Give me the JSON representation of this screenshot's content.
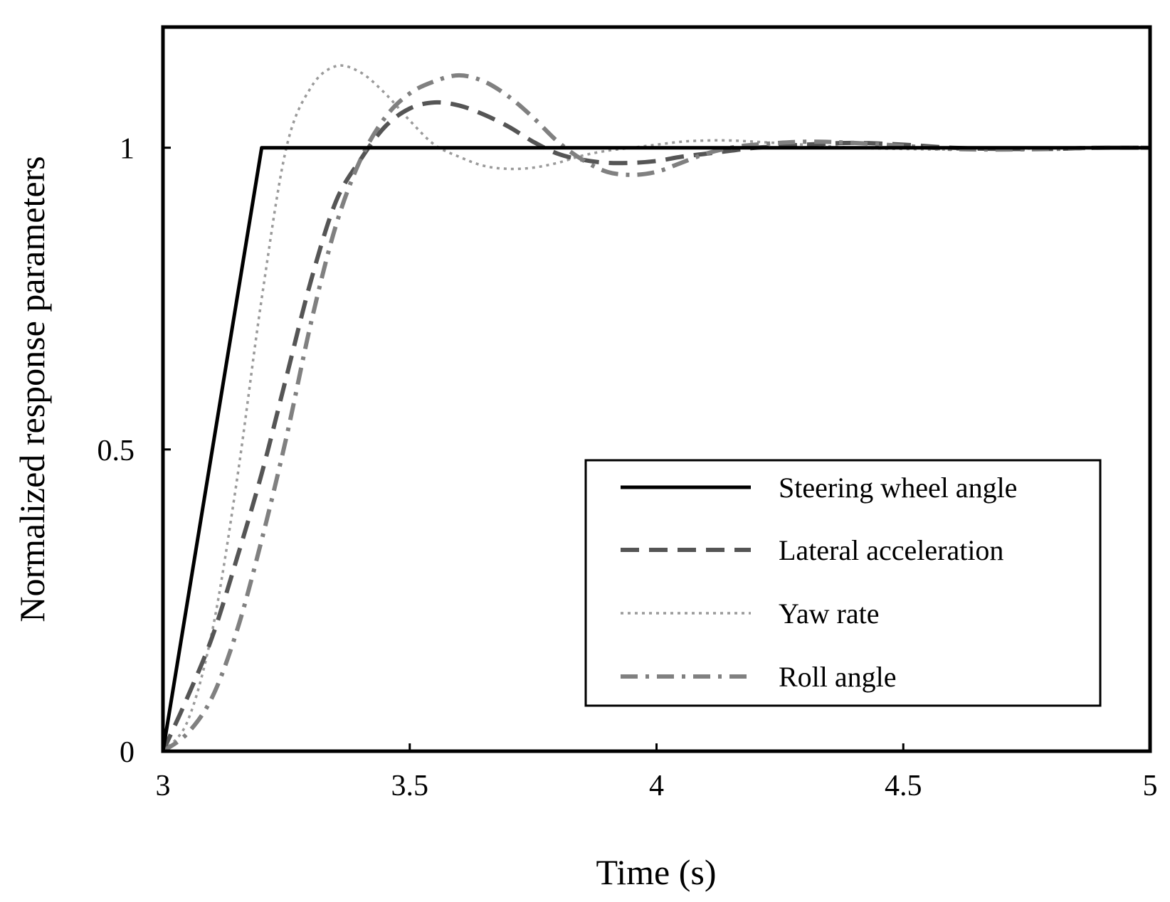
{
  "chart_data": {
    "type": "line",
    "title": "",
    "xlabel": "Time (s)",
    "ylabel": "Normalized response parameters",
    "xlim": [
      3,
      5
    ],
    "ylim": [
      0,
      1.2
    ],
    "x_ticks": [
      3,
      3.5,
      4,
      4.5,
      5
    ],
    "x_tick_labels": [
      "3",
      "3.5",
      "4",
      "4.5",
      "5"
    ],
    "y_ticks": [
      0,
      0.5,
      1
    ],
    "y_tick_labels": [
      "0",
      "0.5",
      "1"
    ],
    "grid": false,
    "legend_position": "bottom-right",
    "series": [
      {
        "name": "Steering wheel angle",
        "style": "solid",
        "color": "#000000",
        "x": [
          3.0,
          3.2,
          5.0
        ],
        "y": [
          0.0,
          1.0,
          1.0
        ]
      },
      {
        "name": "Lateral acceleration",
        "style": "dashed",
        "color": "#555555",
        "x": [
          3.0,
          3.05,
          3.1,
          3.15,
          3.2,
          3.25,
          3.3,
          3.35,
          3.4,
          3.45,
          3.5,
          3.55,
          3.6,
          3.65,
          3.7,
          3.75,
          3.8,
          3.85,
          3.9,
          3.95,
          4.0,
          4.05,
          4.1,
          4.15,
          4.2,
          4.3,
          4.4,
          4.5,
          4.6,
          4.7,
          4.8,
          4.9,
          5.0
        ],
        "y": [
          0.0,
          0.09,
          0.19,
          0.32,
          0.46,
          0.62,
          0.78,
          0.91,
          0.98,
          1.035,
          1.065,
          1.075,
          1.07,
          1.055,
          1.035,
          1.01,
          0.99,
          0.98,
          0.975,
          0.975,
          0.978,
          0.985,
          0.99,
          0.995,
          1.0,
          1.005,
          1.008,
          1.005,
          1.0,
          0.998,
          0.998,
          1.0,
          1.0
        ]
      },
      {
        "name": "Yaw rate",
        "style": "dotted",
        "color": "#9a9a9a",
        "x": [
          3.0,
          3.05,
          3.1,
          3.15,
          3.2,
          3.25,
          3.3,
          3.35,
          3.4,
          3.45,
          3.5,
          3.55,
          3.6,
          3.65,
          3.7,
          3.75,
          3.8,
          3.85,
          3.9,
          3.95,
          4.0,
          4.05,
          4.1,
          4.15,
          4.2,
          4.3,
          4.4,
          4.5,
          4.6,
          4.7,
          4.8,
          4.9,
          5.0
        ],
        "y": [
          0.0,
          0.05,
          0.2,
          0.45,
          0.75,
          1.0,
          1.1,
          1.135,
          1.125,
          1.09,
          1.045,
          1.005,
          0.985,
          0.97,
          0.965,
          0.967,
          0.975,
          0.987,
          0.995,
          1.0,
          1.005,
          1.01,
          1.012,
          1.012,
          1.01,
          1.005,
          1.0,
          0.998,
          0.997,
          0.998,
          0.999,
          1.0,
          1.0
        ]
      },
      {
        "name": "Roll angle",
        "style": "dashdot",
        "color": "#808080",
        "x": [
          3.0,
          3.05,
          3.1,
          3.15,
          3.2,
          3.25,
          3.3,
          3.35,
          3.4,
          3.45,
          3.5,
          3.55,
          3.6,
          3.65,
          3.7,
          3.75,
          3.8,
          3.85,
          3.9,
          3.95,
          4.0,
          4.05,
          4.1,
          4.15,
          4.2,
          4.3,
          4.4,
          4.5,
          4.6,
          4.7,
          4.8,
          4.9,
          5.0
        ],
        "y": [
          0.0,
          0.03,
          0.09,
          0.2,
          0.35,
          0.52,
          0.71,
          0.87,
          0.98,
          1.05,
          1.09,
          1.11,
          1.12,
          1.11,
          1.085,
          1.05,
          1.01,
          0.98,
          0.96,
          0.955,
          0.96,
          0.975,
          0.99,
          1.0,
          1.005,
          1.01,
          1.008,
          1.003,
          0.998,
          0.997,
          0.998,
          1.0,
          1.0
        ]
      }
    ]
  }
}
